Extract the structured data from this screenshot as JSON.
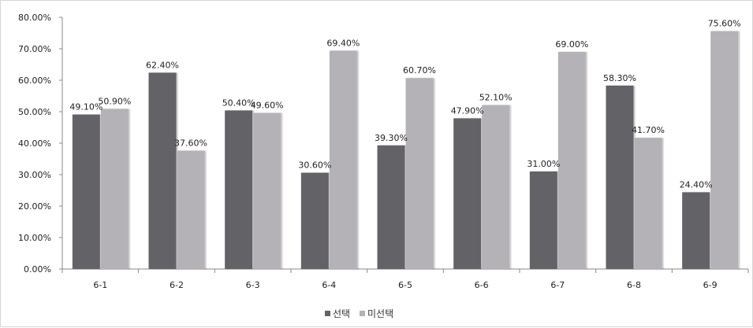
{
  "chart_data": {
    "type": "bar",
    "categories": [
      "6-1",
      "6-2",
      "6-3",
      "6-4",
      "6-5",
      "6-6",
      "6-7",
      "6-8",
      "6-9"
    ],
    "series": [
      {
        "name": "선택",
        "color": "#646266",
        "values": [
          49.1,
          62.4,
          50.4,
          30.6,
          39.3,
          47.9,
          31.0,
          58.3,
          24.4
        ],
        "labels": [
          "49.10%",
          "62.40%",
          "50.40%",
          "30.60%",
          "39.30%",
          "47.90%",
          "31.00%",
          "58.30%",
          "24.40%"
        ]
      },
      {
        "name": "미선택",
        "color": "#b4b2b6",
        "values": [
          50.9,
          37.6,
          49.6,
          69.4,
          60.7,
          52.1,
          69.0,
          41.7,
          75.6
        ],
        "labels": [
          "50.90%",
          "37.60%",
          "49.60%",
          "69.40%",
          "60.70%",
          "52.10%",
          "69.00%",
          "41.70%",
          "75.60%"
        ]
      }
    ],
    "y_ticks": [
      "0.00%",
      "10.00%",
      "20.00%",
      "30.00%",
      "40.00%",
      "50.00%",
      "60.00%",
      "70.00%",
      "80.00%"
    ],
    "ylim": [
      0,
      80
    ],
    "grid": false,
    "legend_position": "bottom",
    "title": "",
    "xlabel": "",
    "ylabel": ""
  }
}
